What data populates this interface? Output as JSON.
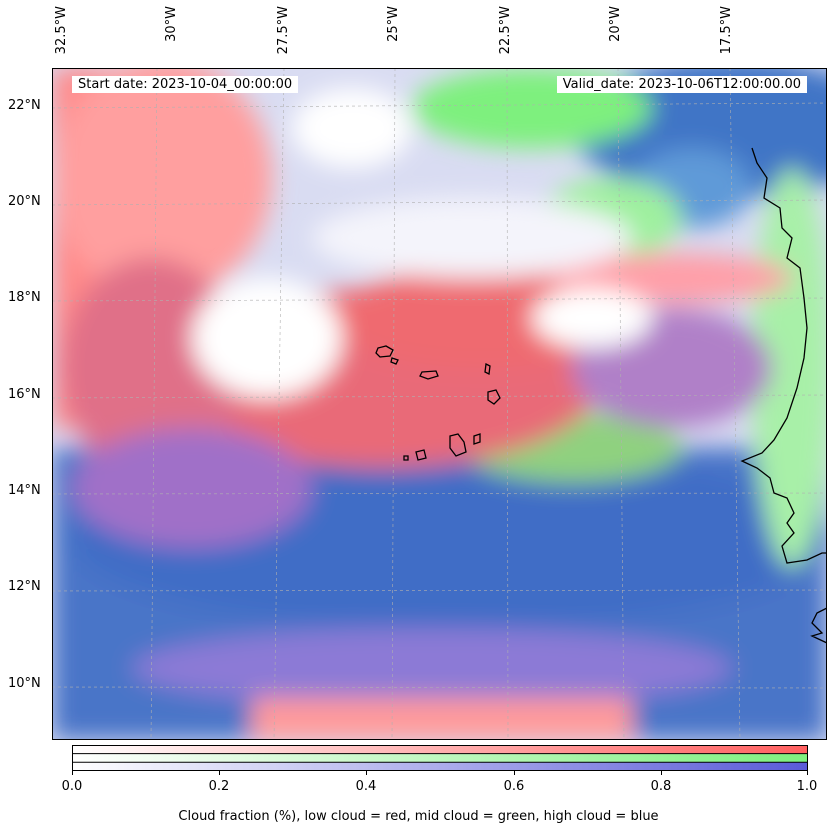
{
  "map": {
    "start_date": "Start date: 2023-10-04_00:00:00",
    "valid_date": "Valid_date: 2023-10-06T12:00:00.00",
    "lon_labels": [
      "32.5°W",
      "30°W",
      "27.5°W",
      "25°W",
      "22.5°W",
      "20°W",
      "17.5°W"
    ],
    "lat_labels": [
      "22°N",
      "20°N",
      "18°N",
      "16°N",
      "14°N",
      "12°N",
      "10°N"
    ],
    "colors": {
      "low_cloud": "#ff5a5a",
      "mid_cloud": "#6ef06e",
      "high_cloud": "#3a6fd0"
    }
  },
  "colorbar": {
    "ticks": [
      "0.0",
      "0.2",
      "0.4",
      "0.6",
      "0.8",
      "1.0"
    ],
    "label": "Cloud fraction (%), low cloud = red, mid cloud = green, high cloud = blue"
  }
}
